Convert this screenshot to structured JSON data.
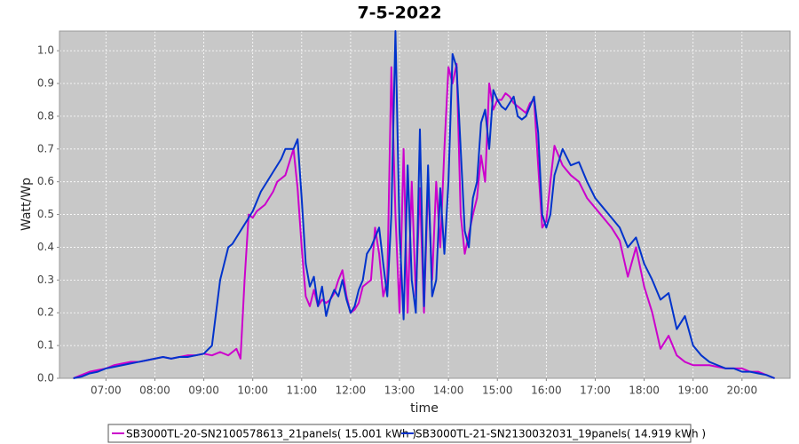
{
  "chart_data": {
    "type": "line",
    "title": "7-5-2022",
    "x_label": "time",
    "y_label": "Watt/Wp",
    "x": [
      "06:20",
      "06:30",
      "06:40",
      "06:50",
      "07:00",
      "07:10",
      "07:20",
      "07:30",
      "07:40",
      "07:50",
      "08:00",
      "08:10",
      "08:20",
      "08:30",
      "08:40",
      "08:50",
      "09:00",
      "09:10",
      "09:20",
      "09:30",
      "09:35",
      "09:40",
      "09:45",
      "09:50",
      "09:55",
      "10:00",
      "10:05",
      "10:10",
      "10:15",
      "10:20",
      "10:25",
      "10:30",
      "10:35",
      "10:40",
      "10:45",
      "10:50",
      "10:55",
      "11:00",
      "11:05",
      "11:10",
      "11:15",
      "11:20",
      "11:25",
      "11:30",
      "11:35",
      "11:40",
      "11:45",
      "11:50",
      "11:55",
      "12:00",
      "12:05",
      "12:10",
      "12:15",
      "12:20",
      "12:25",
      "12:30",
      "12:35",
      "12:40",
      "12:45",
      "12:50",
      "12:55",
      "13:00",
      "13:05",
      "13:10",
      "13:15",
      "13:20",
      "13:25",
      "13:30",
      "13:35",
      "13:40",
      "13:45",
      "13:50",
      "13:55",
      "14:00",
      "14:05",
      "14:10",
      "14:15",
      "14:20",
      "14:25",
      "14:30",
      "14:35",
      "14:40",
      "14:45",
      "14:50",
      "14:55",
      "15:00",
      "15:05",
      "15:10",
      "15:15",
      "15:20",
      "15:25",
      "15:30",
      "15:35",
      "15:40",
      "15:45",
      "15:50",
      "15:55",
      "16:00",
      "16:05",
      "16:10",
      "16:20",
      "16:30",
      "16:40",
      "16:50",
      "17:00",
      "17:10",
      "17:20",
      "17:30",
      "17:40",
      "17:50",
      "18:00",
      "18:10",
      "18:20",
      "18:30",
      "18:40",
      "18:50",
      "19:00",
      "19:10",
      "19:20",
      "19:30",
      "19:40",
      "19:50",
      "20:00",
      "20:10",
      "20:20",
      "20:30",
      "20:40"
    ],
    "series": [
      {
        "name": "SB3000TL-20-SN2100578613_21panels( 15.001 kWh )",
        "color": "#cc00cc",
        "values": [
          0,
          0.01,
          0.02,
          0.025,
          0.03,
          0.04,
          0.045,
          0.05,
          0.05,
          0.055,
          0.06,
          0.065,
          0.06,
          0.065,
          0.07,
          0.07,
          0.075,
          0.07,
          0.08,
          0.07,
          0.08,
          0.09,
          0.06,
          0.3,
          0.5,
          0.49,
          0.51,
          0.52,
          0.53,
          0.55,
          0.57,
          0.6,
          0.61,
          0.62,
          0.66,
          0.7,
          0.58,
          0.4,
          0.25,
          0.22,
          0.27,
          0.22,
          0.24,
          0.23,
          0.24,
          0.26,
          0.3,
          0.33,
          0.25,
          0.2,
          0.21,
          0.23,
          0.28,
          0.29,
          0.3,
          0.46,
          0.38,
          0.25,
          0.3,
          0.95,
          0.5,
          0.2,
          0.7,
          0.2,
          0.6,
          0.25,
          0.58,
          0.2,
          0.6,
          0.3,
          0.6,
          0.4,
          0.7,
          0.95,
          0.9,
          0.96,
          0.5,
          0.38,
          0.44,
          0.5,
          0.55,
          0.68,
          0.6,
          0.9,
          0.82,
          0.85,
          0.85,
          0.87,
          0.86,
          0.84,
          0.83,
          0.82,
          0.81,
          0.84,
          0.85,
          0.65,
          0.46,
          0.48,
          0.6,
          0.71,
          0.65,
          0.62,
          0.6,
          0.55,
          0.52,
          0.49,
          0.46,
          0.42,
          0.31,
          0.4,
          0.28,
          0.2,
          0.09,
          0.13,
          0.07,
          0.05,
          0.04,
          0.04,
          0.04,
          0.035,
          0.03,
          0.03,
          0.03,
          0.02,
          0.02,
          0.01,
          0
        ]
      },
      {
        "name": "SB3000TL-21-SN2130032031_19panels( 14.919 kWh )",
        "color": "#0033cc",
        "values": [
          0,
          0.005,
          0.015,
          0.02,
          0.03,
          0.035,
          0.04,
          0.045,
          0.05,
          0.055,
          0.06,
          0.065,
          0.06,
          0.065,
          0.065,
          0.07,
          0.075,
          0.1,
          0.3,
          0.4,
          0.41,
          0.43,
          0.45,
          0.47,
          0.49,
          0.51,
          0.54,
          0.57,
          0.59,
          0.61,
          0.63,
          0.65,
          0.67,
          0.7,
          0.7,
          0.7,
          0.73,
          0.55,
          0.35,
          0.28,
          0.31,
          0.22,
          0.28,
          0.19,
          0.24,
          0.27,
          0.25,
          0.3,
          0.24,
          0.2,
          0.22,
          0.27,
          0.3,
          0.38,
          0.4,
          0.43,
          0.46,
          0.35,
          0.25,
          0.5,
          1.06,
          0.45,
          0.18,
          0.65,
          0.3,
          0.2,
          0.76,
          0.22,
          0.65,
          0.25,
          0.3,
          0.58,
          0.38,
          0.6,
          0.99,
          0.95,
          0.7,
          0.45,
          0.4,
          0.55,
          0.6,
          0.78,
          0.82,
          0.7,
          0.88,
          0.85,
          0.83,
          0.82,
          0.84,
          0.86,
          0.8,
          0.79,
          0.8,
          0.83,
          0.86,
          0.75,
          0.5,
          0.46,
          0.5,
          0.62,
          0.7,
          0.65,
          0.66,
          0.6,
          0.55,
          0.52,
          0.49,
          0.46,
          0.4,
          0.43,
          0.35,
          0.3,
          0.24,
          0.26,
          0.15,
          0.19,
          0.1,
          0.07,
          0.05,
          0.04,
          0.03,
          0.03,
          0.02,
          0.02,
          0.015,
          0.01,
          0
        ]
      }
    ],
    "xlim": [
      "06:03",
      "20:59"
    ],
    "xticks": [
      "07:00",
      "08:00",
      "09:00",
      "10:00",
      "11:00",
      "12:00",
      "13:00",
      "14:00",
      "15:00",
      "16:00",
      "17:00",
      "18:00",
      "19:00",
      "20:00"
    ],
    "ylim": [
      0,
      1.06
    ],
    "yticks": [
      {
        "value": 0,
        "label": "0.0"
      },
      0.1,
      0.2,
      0.3,
      0.4,
      0.5,
      0.6,
      0.7,
      0.8,
      0.9,
      {
        "value": 1,
        "label": "1.0"
      }
    ],
    "grid": true,
    "legend": "bottom"
  }
}
